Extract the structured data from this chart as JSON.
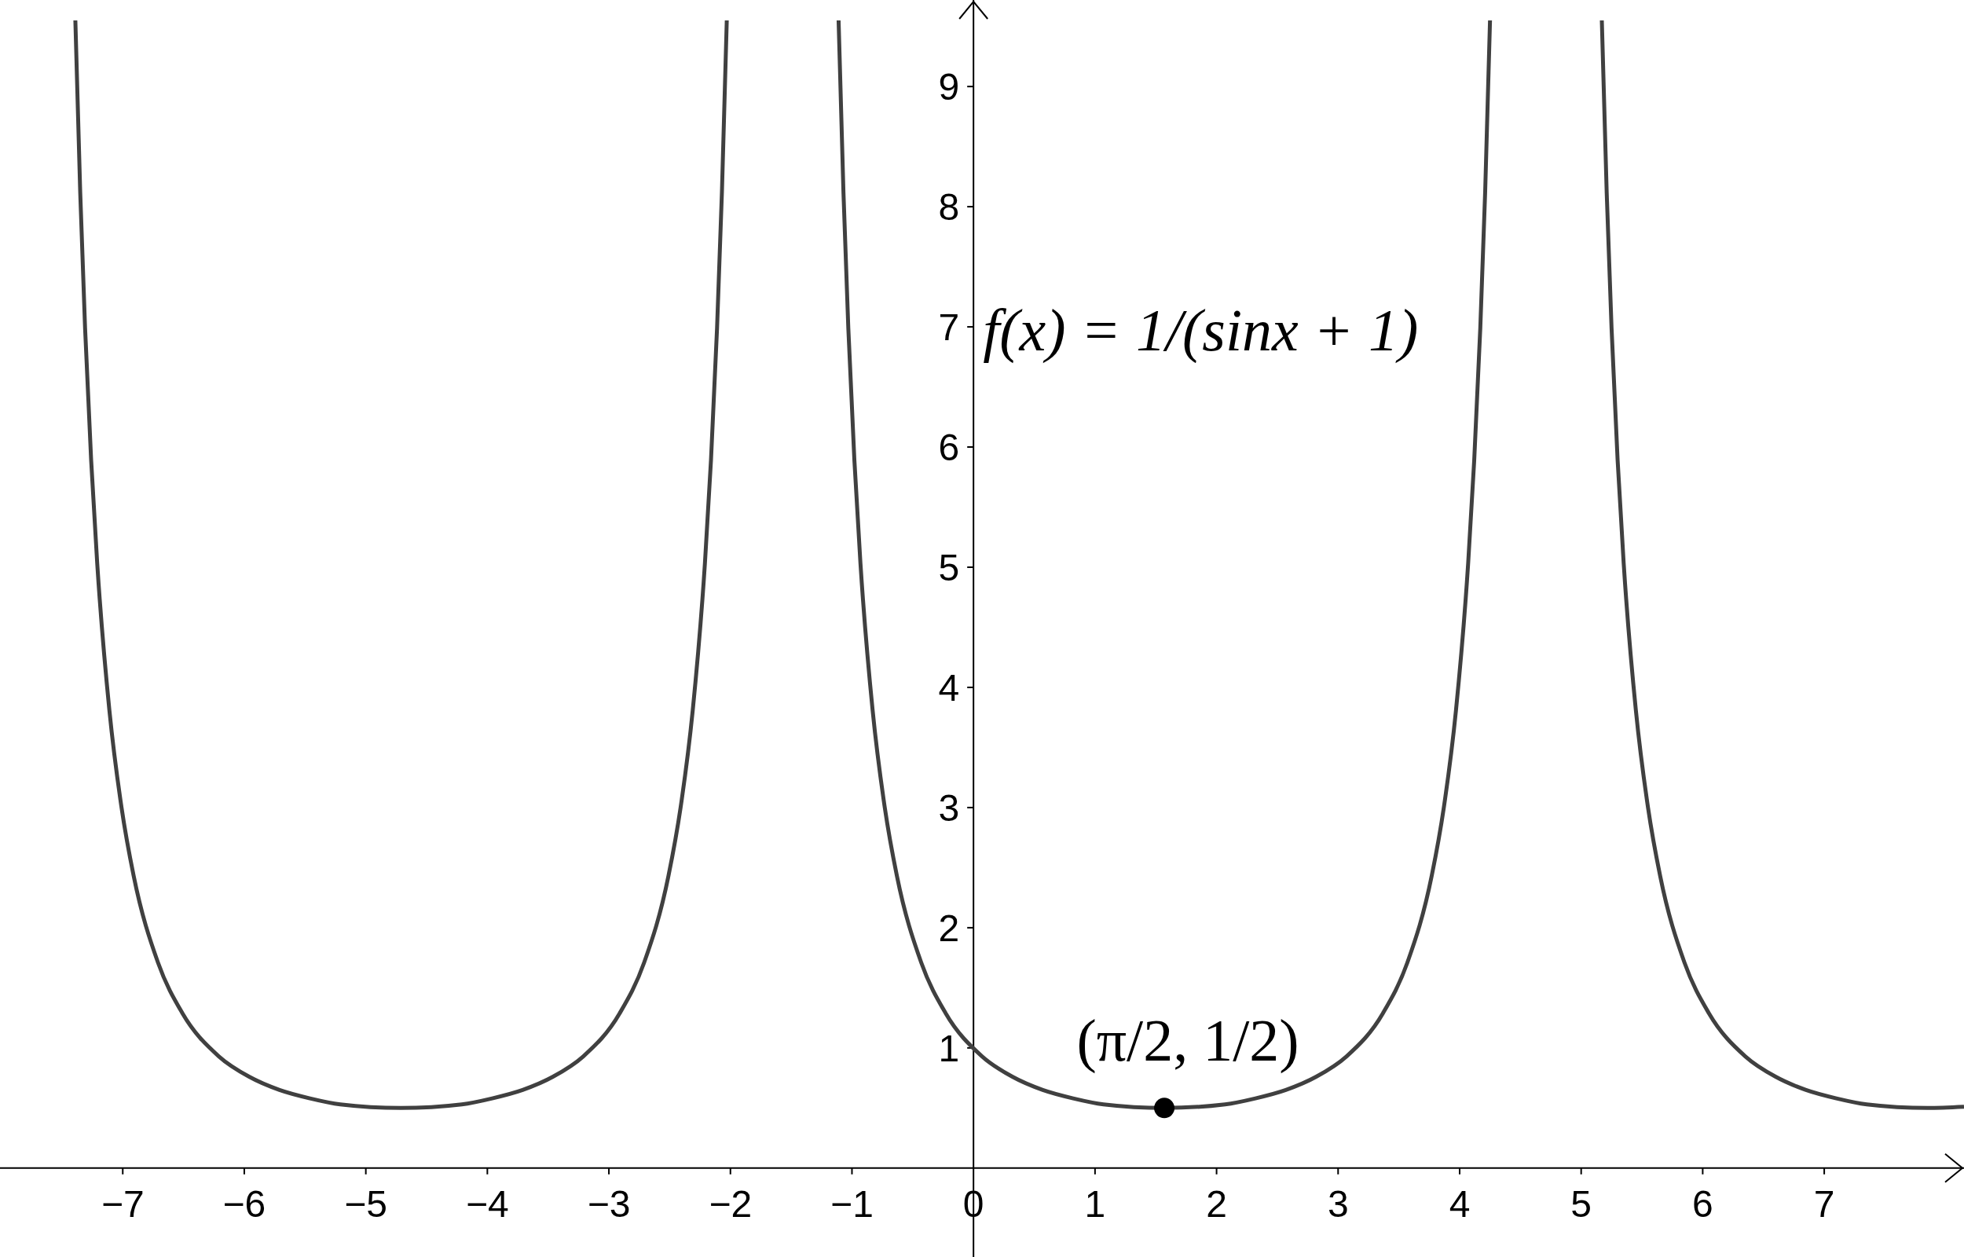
{
  "chart_data": {
    "type": "line",
    "xlim": [
      -8.01,
      8.15
    ],
    "ylim": [
      -0.74,
      9.72
    ],
    "xticks": [
      {
        "value": -7,
        "label": "−7"
      },
      {
        "value": -6,
        "label": "−6"
      },
      {
        "value": -5,
        "label": "−5"
      },
      {
        "value": -4,
        "label": "−4"
      },
      {
        "value": -3,
        "label": "−3"
      },
      {
        "value": -2,
        "label": "−2"
      },
      {
        "value": -1,
        "label": "−1"
      },
      0,
      1,
      2,
      3,
      4,
      5,
      6,
      7
    ],
    "yticks": [
      1,
      2,
      3,
      4,
      5,
      6,
      7,
      8,
      9
    ],
    "annotations": [
      "f(x) = 1/(sinx + 1)",
      {
        "text": "(π/2, 1/2)",
        "x": 1.57,
        "y": 0.5
      }
    ],
    "series": [
      {
        "color": "#404040",
        "x": [
          -7.39,
          -7.35,
          -7.31,
          -7.26,
          -7.21,
          -7.11,
          -7.01,
          -6.91,
          -6.71,
          -6.51,
          -6.21,
          -5.96,
          -5.71,
          -5.46,
          -5.21,
          -4.71,
          -4.21,
          -3.96,
          -3.71,
          -3.46,
          -3.21,
          -2.91,
          -2.71,
          -2.51,
          -2.41,
          -2.31,
          -2.21,
          -2.16,
          -2.11,
          -2.07,
          -2.03,
          -1.57,
          -1.11,
          -1.07,
          -1.03,
          -0.98,
          -0.93,
          -0.83,
          -0.73,
          -0.63,
          -0.43,
          -0.23,
          0.07,
          0.32,
          0.57,
          0.82,
          1.07,
          1.57,
          2.07,
          2.32,
          2.57,
          2.82,
          3.07,
          3.37,
          3.57,
          3.77,
          3.87,
          3.97,
          4.07,
          4.12,
          4.17,
          4.21,
          4.25,
          4.71,
          5.17,
          5.21,
          5.25,
          5.3,
          5.35,
          5.45,
          5.55,
          5.65,
          5.85,
          6.05,
          6.35,
          6.6,
          6.85,
          7.1,
          7.35,
          7.85,
          8.15
        ],
        "values": [
          9.55,
          8.12,
          6.99,
          5.89,
          5.03,
          3.81,
          3.0,
          2.43,
          1.71,
          1.29,
          0.93,
          0.76,
          0.65,
          0.58,
          0.53,
          0.5,
          0.53,
          0.58,
          0.65,
          0.76,
          0.93,
          1.29,
          1.71,
          2.43,
          3.0,
          3.81,
          5.03,
          5.89,
          6.99,
          8.12,
          9.55,
          null,
          9.55,
          8.12,
          6.99,
          5.89,
          5.03,
          3.81,
          3.0,
          2.43,
          1.71,
          1.29,
          0.93,
          0.76,
          0.65,
          0.58,
          0.53,
          0.5,
          0.53,
          0.58,
          0.65,
          0.76,
          0.93,
          1.29,
          1.71,
          2.43,
          3.0,
          3.81,
          5.03,
          5.89,
          6.99,
          8.12,
          9.55,
          null,
          9.55,
          8.12,
          6.99,
          5.89,
          5.03,
          3.81,
          3.0,
          2.43,
          1.71,
          1.29,
          0.93,
          0.76,
          0.65,
          0.58,
          0.53,
          0.5,
          0.51
        ]
      },
      {
        "type": "scatter",
        "color": "#000000",
        "x": [
          1.57
        ],
        "values": [
          0.5
        ]
      }
    ]
  }
}
